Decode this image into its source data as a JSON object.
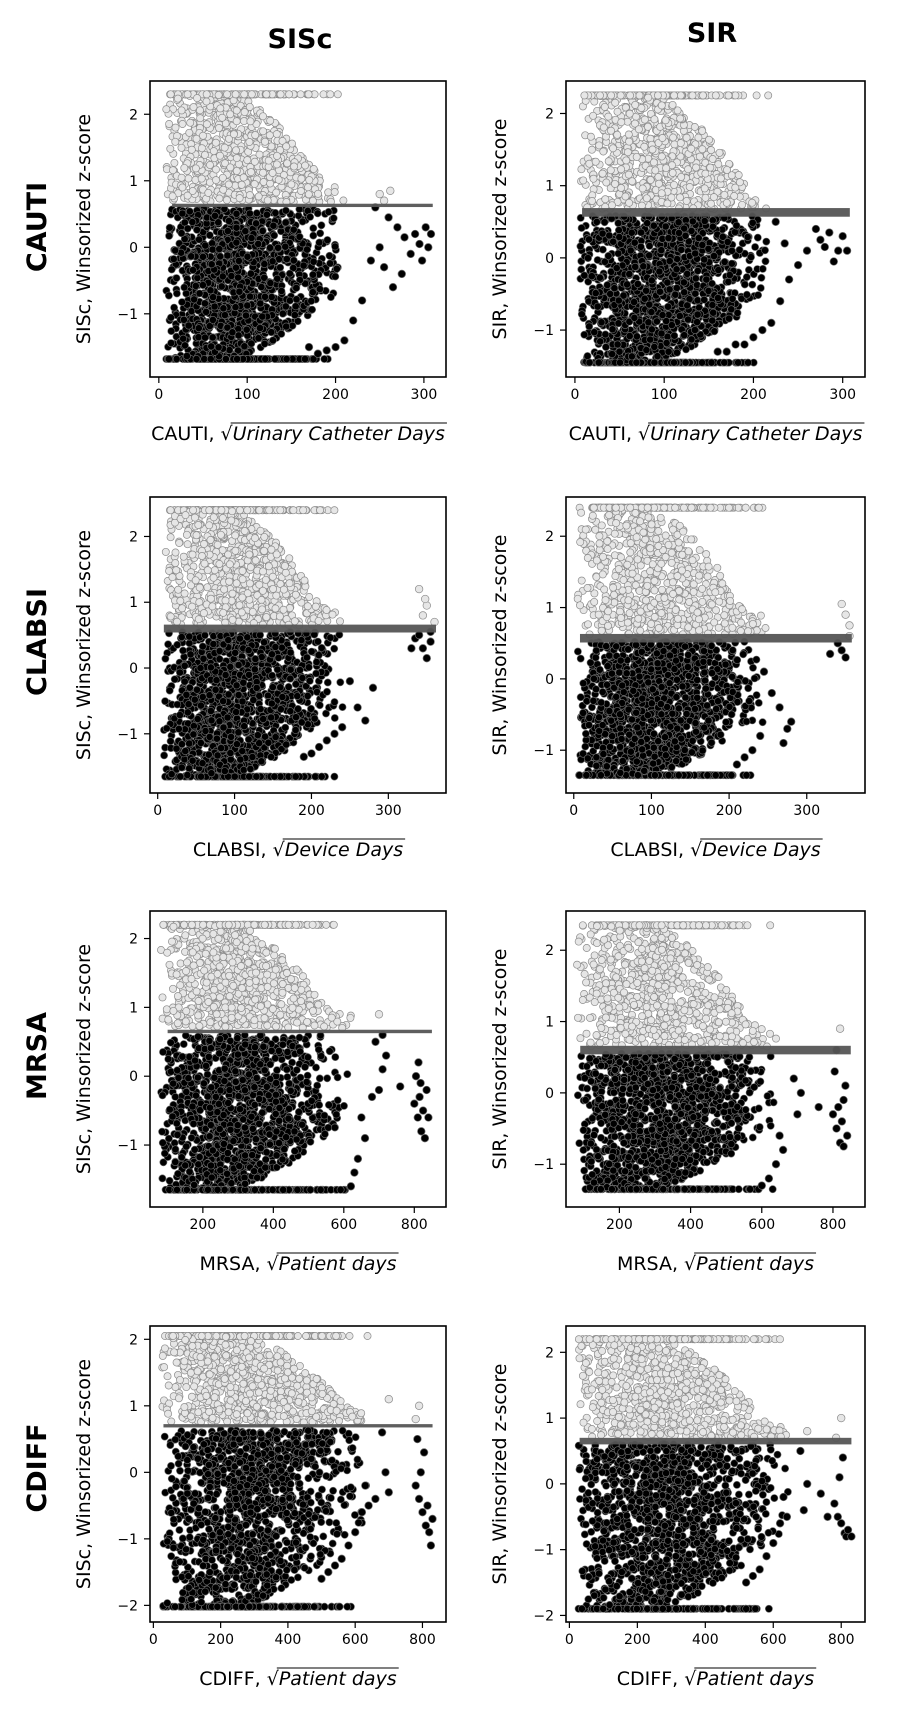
{
  "columns": [
    "SISc",
    "SIR"
  ],
  "rows": [
    "CAUTI",
    "CLABSI",
    "MRSA",
    "CDIFF"
  ],
  "colors": {
    "above": "#e6e6e6",
    "above_stroke": "#8c8c8c",
    "below": "#000000",
    "below_stroke": "#6e6e6e",
    "threshold": "#555555"
  },
  "chart_data": [
    {
      "id": "cauti-sisc",
      "type": "scatter",
      "row": "CAUTI",
      "col": "SISc",
      "xlabel_prefix": "CAUTI, ",
      "xlabel_var": "Urinary Catheter Days",
      "ylabel": "SISc, Winsorized z-score",
      "xlim": [
        -10,
        325
      ],
      "ylim": [
        -1.95,
        2.5
      ],
      "xticks": [
        0,
        100,
        200,
        300
      ],
      "yticks": [
        -1,
        0,
        1,
        2
      ],
      "threshold": {
        "y": 0.63,
        "x_range": [
          15,
          310
        ],
        "thickness": 0.05
      },
      "cloud": {
        "xmin": 8,
        "xmax": 200,
        "xpeak": 90,
        "yabove_max": 2.3,
        "ybelow_min": -1.68,
        "y_lower_clip": -1.68,
        "upper_clip": 2.3
      },
      "outliers": [
        [
          260,
          0.45
        ],
        [
          270,
          0.3
        ],
        [
          278,
          0.15
        ],
        [
          285,
          -0.1
        ],
        [
          290,
          0.2
        ],
        [
          295,
          0.05
        ],
        [
          298,
          -0.2
        ],
        [
          302,
          0.3
        ],
        [
          305,
          0.0
        ],
        [
          308,
          0.2
        ],
        [
          275,
          -0.4
        ],
        [
          265,
          -0.6
        ],
        [
          255,
          -0.3
        ],
        [
          250,
          0.0
        ],
        [
          240,
          -0.2
        ],
        [
          230,
          -0.8
        ],
        [
          220,
          -1.1
        ],
        [
          210,
          -1.4
        ],
        [
          200,
          -1.5
        ],
        [
          190,
          -1.55
        ],
        [
          180,
          -1.6
        ],
        [
          170,
          -1.5
        ],
        [
          245,
          0.6
        ],
        [
          250,
          0.8
        ],
        [
          262,
          0.85
        ],
        [
          255,
          0.7
        ]
      ]
    },
    {
      "id": "cauti-sir",
      "type": "scatter",
      "row": "CAUTI",
      "col": "SIR",
      "xlabel_prefix": "CAUTI, ",
      "xlabel_var": "Urinary Catheter Days",
      "ylabel": "SIR, Winsorized z-score",
      "xlim": [
        -10,
        325
      ],
      "ylim": [
        -1.65,
        2.45
      ],
      "xticks": [
        0,
        100,
        200,
        300
      ],
      "yticks": [
        -1,
        0,
        1,
        2
      ],
      "threshold": {
        "y": 0.63,
        "x_range": [
          8,
          308
        ],
        "thickness": 0.12
      },
      "cloud": {
        "xmin": 5,
        "xmax": 210,
        "xpeak": 95,
        "yabove_max": 2.25,
        "ybelow_min": -1.45,
        "y_lower_clip": -1.45,
        "upper_clip": 2.25
      },
      "outliers": [
        [
          275,
          0.25
        ],
        [
          280,
          0.15
        ],
        [
          290,
          -0.05
        ],
        [
          295,
          0.1
        ],
        [
          300,
          0.3
        ],
        [
          305,
          0.1
        ],
        [
          285,
          0.35
        ],
        [
          270,
          0.4
        ],
        [
          260,
          0.1
        ],
        [
          250,
          -0.1
        ],
        [
          240,
          -0.3
        ],
        [
          235,
          0.2
        ],
        [
          225,
          0.5
        ],
        [
          230,
          -0.6
        ],
        [
          220,
          -0.9
        ],
        [
          210,
          -1.0
        ],
        [
          200,
          -1.1
        ],
        [
          190,
          -1.2
        ],
        [
          180,
          -1.2
        ],
        [
          170,
          -1.3
        ],
        [
          160,
          -1.3
        ]
      ]
    },
    {
      "id": "clabsi-sisc",
      "type": "scatter",
      "row": "CLABSI",
      "col": "SISc",
      "xlabel_prefix": "CLABSI, ",
      "xlabel_var": "Device Days",
      "ylabel": "SISc, Winsorized z-score",
      "xlim": [
        -10,
        375
      ],
      "ylim": [
        -1.9,
        2.6
      ],
      "xticks": [
        0,
        100,
        200,
        300
      ],
      "yticks": [
        -1,
        0,
        1,
        2
      ],
      "threshold": {
        "y": 0.6,
        "x_range": [
          8,
          362
        ],
        "thickness": 0.12
      },
      "cloud": {
        "xmin": 8,
        "xmax": 230,
        "xpeak": 90,
        "yabove_max": 2.4,
        "ybelow_min": -1.65,
        "y_lower_clip": -1.65,
        "upper_clip": 2.4
      },
      "outliers": [
        [
          330,
          0.3
        ],
        [
          335,
          0.45
        ],
        [
          340,
          0.5
        ],
        [
          345,
          0.3
        ],
        [
          350,
          0.15
        ],
        [
          355,
          0.4
        ],
        [
          345,
          0.8
        ],
        [
          350,
          0.95
        ],
        [
          340,
          1.2
        ],
        [
          348,
          1.05
        ],
        [
          360,
          0.7
        ],
        [
          355,
          0.55
        ],
        [
          280,
          -0.3
        ],
        [
          270,
          -0.8
        ],
        [
          260,
          -0.6
        ],
        [
          250,
          -0.2
        ],
        [
          240,
          -0.9
        ],
        [
          230,
          -1.0
        ],
        [
          220,
          -1.1
        ],
        [
          210,
          -1.2
        ],
        [
          200,
          -1.3
        ],
        [
          190,
          -1.35
        ]
      ]
    },
    {
      "id": "clabsi-sir",
      "type": "scatter",
      "row": "CLABSI",
      "col": "SIR",
      "xlabel_prefix": "CLABSI, ",
      "xlabel_var": "Device Days",
      "ylabel": "SIR, Winsorized z-score",
      "xlim": [
        -10,
        375
      ],
      "ylim": [
        -1.6,
        2.55
      ],
      "xticks": [
        0,
        100,
        200,
        300
      ],
      "yticks": [
        -1,
        0,
        1,
        2
      ],
      "threshold": {
        "y": 0.57,
        "x_range": [
          8,
          358
        ],
        "thickness": 0.12
      },
      "cloud": {
        "xmin": 5,
        "xmax": 240,
        "xpeak": 90,
        "yabove_max": 2.4,
        "ybelow_min": -1.35,
        "y_lower_clip": -1.35,
        "upper_clip": 2.4
      },
      "outliers": [
        [
          330,
          0.35
        ],
        [
          340,
          0.5
        ],
        [
          345,
          0.4
        ],
        [
          350,
          0.3
        ],
        [
          355,
          0.6
        ],
        [
          350,
          0.9
        ],
        [
          345,
          1.05
        ],
        [
          355,
          0.75
        ],
        [
          280,
          -0.6
        ],
        [
          270,
          -0.9
        ],
        [
          275,
          -0.7
        ],
        [
          265,
          -0.4
        ],
        [
          255,
          -0.2
        ],
        [
          245,
          0.1
        ],
        [
          240,
          -0.8
        ],
        [
          230,
          -1.0
        ],
        [
          220,
          -1.1
        ],
        [
          210,
          -1.2
        ]
      ]
    },
    {
      "id": "mrsa-sisc",
      "type": "scatter",
      "row": "MRSA",
      "col": "SISc",
      "xlabel_prefix": "MRSA, ",
      "xlabel_var": "Patient days",
      "ylabel": "SISc, Winsorized z-score",
      "xlim": [
        50,
        890
      ],
      "ylim": [
        -1.9,
        2.4
      ],
      "xticks": [
        200,
        400,
        600,
        800
      ],
      "yticks": [
        -1,
        0,
        1,
        2
      ],
      "threshold": {
        "y": 0.65,
        "x_range": [
          100,
          850
        ],
        "thickness": 0.05
      },
      "cloud": {
        "xmin": 80,
        "xmax": 600,
        "xpeak": 260,
        "yabove_max": 2.2,
        "ybelow_min": -1.65,
        "y_lower_clip": -1.65,
        "upper_clip": 2.2
      },
      "outliers": [
        [
          800,
          -0.4
        ],
        [
          810,
          -0.6
        ],
        [
          815,
          -0.3
        ],
        [
          820,
          -0.8
        ],
        [
          825,
          -0.5
        ],
        [
          830,
          -0.9
        ],
        [
          835,
          -0.2
        ],
        [
          840,
          -0.6
        ],
        [
          805,
          0.0
        ],
        [
          812,
          0.2
        ],
        [
          818,
          -0.1
        ],
        [
          700,
          -0.2
        ],
        [
          710,
          0.1
        ],
        [
          720,
          0.3
        ],
        [
          690,
          0.5
        ],
        [
          700,
          0.9
        ],
        [
          710,
          0.6
        ],
        [
          650,
          -0.6
        ],
        [
          660,
          -0.9
        ],
        [
          640,
          -1.2
        ],
        [
          630,
          -1.4
        ],
        [
          620,
          -1.6
        ],
        [
          680,
          -0.3
        ],
        [
          760,
          -0.15
        ]
      ]
    },
    {
      "id": "mrsa-sir",
      "type": "scatter",
      "row": "MRSA",
      "col": "SIR",
      "xlabel_prefix": "MRSA, ",
      "xlabel_var": "Patient days",
      "ylabel": "SIR, Winsorized z-score",
      "xlim": [
        50,
        890
      ],
      "ylim": [
        -1.6,
        2.55
      ],
      "xticks": [
        200,
        400,
        600,
        800
      ],
      "yticks": [
        -1,
        0,
        1,
        2
      ],
      "threshold": {
        "y": 0.6,
        "x_range": [
          90,
          850
        ],
        "thickness": 0.12
      },
      "cloud": {
        "xmin": 80,
        "xmax": 620,
        "xpeak": 260,
        "yabove_max": 2.35,
        "ybelow_min": -1.35,
        "y_lower_clip": -1.35,
        "upper_clip": 2.35
      },
      "outliers": [
        [
          800,
          -0.3
        ],
        [
          810,
          -0.5
        ],
        [
          815,
          -0.2
        ],
        [
          820,
          -0.7
        ],
        [
          825,
          -0.4
        ],
        [
          830,
          -0.1
        ],
        [
          835,
          0.1
        ],
        [
          840,
          -0.6
        ],
        [
          805,
          0.3
        ],
        [
          810,
          0.6
        ],
        [
          820,
          0.9
        ],
        [
          700,
          -0.3
        ],
        [
          710,
          0.0
        ],
        [
          690,
          0.2
        ],
        [
          660,
          -0.8
        ],
        [
          650,
          -0.6
        ],
        [
          640,
          -1.0
        ],
        [
          620,
          -1.2
        ],
        [
          600,
          -1.3
        ],
        [
          760,
          -0.2
        ],
        [
          830,
          -0.75
        ]
      ]
    },
    {
      "id": "cdiff-sisc",
      "type": "scatter",
      "row": "CDIFF",
      "col": "SISc",
      "xlabel_prefix": "CDIFF, ",
      "xlabel_var": "Patient days",
      "ylabel": "SISc, Winsorized z-score",
      "xlim": [
        -10,
        870
      ],
      "ylim": [
        -2.25,
        2.2
      ],
      "xticks": [
        0,
        200,
        400,
        600,
        800
      ],
      "yticks": [
        -2,
        -1,
        0,
        1,
        2
      ],
      "threshold": {
        "y": 0.7,
        "x_range": [
          30,
          830
        ],
        "thickness": 0.05
      },
      "cloud": {
        "xmin": 25,
        "xmax": 620,
        "xpeak": 160,
        "yabove_max": 2.05,
        "ybelow_min": -2.02,
        "y_lower_clip": -2.02,
        "upper_clip": 2.05
      },
      "outliers": [
        [
          780,
          -0.2
        ],
        [
          790,
          -0.4
        ],
        [
          800,
          -0.6
        ],
        [
          810,
          -0.8
        ],
        [
          815,
          -0.5
        ],
        [
          820,
          -0.9
        ],
        [
          825,
          -1.1
        ],
        [
          830,
          -0.7
        ],
        [
          795,
          0.0
        ],
        [
          805,
          0.3
        ],
        [
          785,
          0.5
        ],
        [
          780,
          0.8
        ],
        [
          790,
          1.0
        ],
        [
          700,
          -0.3
        ],
        [
          690,
          0.0
        ],
        [
          680,
          0.6
        ],
        [
          700,
          1.1
        ],
        [
          640,
          -0.5
        ],
        [
          630,
          -0.2
        ],
        [
          660,
          -0.4
        ],
        [
          620,
          -0.6
        ],
        [
          600,
          -0.9
        ],
        [
          580,
          -1.1
        ],
        [
          560,
          -1.3
        ],
        [
          540,
          -1.4
        ],
        [
          520,
          -1.5
        ],
        [
          500,
          -1.6
        ]
      ]
    },
    {
      "id": "cdiff-sir",
      "type": "scatter",
      "row": "CDIFF",
      "col": "SIR",
      "xlabel_prefix": "CDIFF, ",
      "xlabel_var": "Patient days",
      "ylabel": "SIR, Winsorized z-score",
      "xlim": [
        -10,
        870
      ],
      "ylim": [
        -2.1,
        2.4
      ],
      "xticks": [
        0,
        200,
        400,
        600,
        800
      ],
      "yticks": [
        -2,
        -1,
        0,
        1,
        2
      ],
      "threshold": {
        "y": 0.65,
        "x_range": [
          30,
          830
        ],
        "thickness": 0.1
      },
      "cloud": {
        "xmin": 25,
        "xmax": 620,
        "xpeak": 150,
        "yabove_max": 2.2,
        "ybelow_min": -1.9,
        "y_lower_clip": -1.9,
        "upper_clip": 2.2
      },
      "outliers": [
        [
          780,
          -0.3
        ],
        [
          790,
          -0.5
        ],
        [
          800,
          -0.6
        ],
        [
          810,
          -0.75
        ],
        [
          815,
          -0.8
        ],
        [
          820,
          -0.7
        ],
        [
          830,
          -0.8
        ],
        [
          795,
          0.1
        ],
        [
          805,
          0.4
        ],
        [
          785,
          0.7
        ],
        [
          800,
          1.0
        ],
        [
          700,
          0.0
        ],
        [
          690,
          -0.4
        ],
        [
          680,
          0.5
        ],
        [
          700,
          0.8
        ],
        [
          640,
          -0.5
        ],
        [
          630,
          -0.2
        ],
        [
          620,
          -0.6
        ],
        [
          600,
          -0.9
        ],
        [
          580,
          -1.1
        ],
        [
          560,
          -1.3
        ],
        [
          540,
          -1.4
        ],
        [
          520,
          -1.5
        ],
        [
          740,
          -0.15
        ],
        [
          760,
          -0.5
        ]
      ]
    }
  ]
}
